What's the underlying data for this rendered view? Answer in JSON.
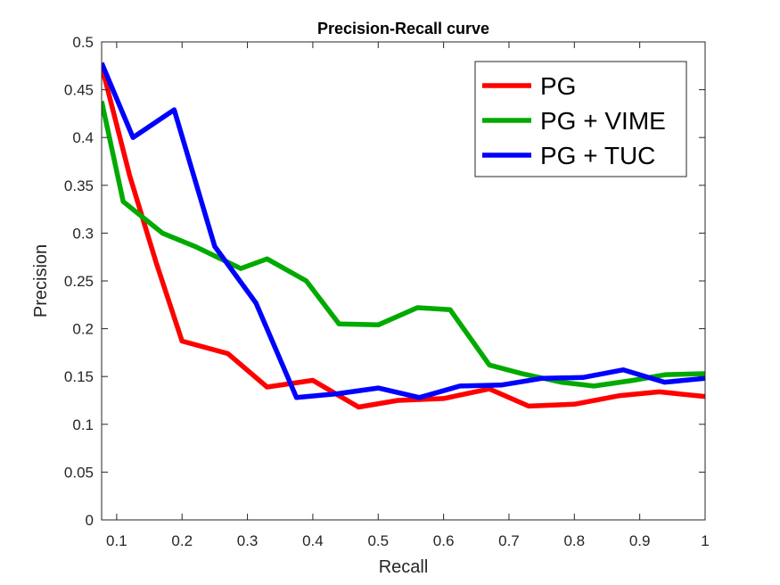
{
  "chart_data": {
    "type": "line",
    "title": "Precision-Recall curve",
    "xlabel": "Recall",
    "ylabel": "Precision",
    "xlim": [
      0.077,
      1.0
    ],
    "ylim": [
      0,
      0.5
    ],
    "xticks": [
      0.1,
      0.2,
      0.3,
      0.4,
      0.5,
      0.6,
      0.7,
      0.8,
      0.9,
      1
    ],
    "xtick_labels": [
      "0.1",
      "0.2",
      "0.3",
      "0.4",
      "0.5",
      "0.6",
      "0.7",
      "0.8",
      "0.9",
      "1"
    ],
    "yticks": [
      0,
      0.05,
      0.1,
      0.15,
      0.2,
      0.25,
      0.3,
      0.35,
      0.4,
      0.45,
      0.5
    ],
    "ytick_labels": [
      "0",
      "0.05",
      "0.1",
      "0.15",
      "0.2",
      "0.25",
      "0.3",
      "0.35",
      "0.4",
      "0.45",
      "0.5"
    ],
    "grid": false,
    "legend_position": "top-right",
    "series": [
      {
        "name": "PG",
        "color": "#ff0000",
        "x": [
          0.077,
          0.12,
          0.16,
          0.2,
          0.27,
          0.33,
          0.4,
          0.47,
          0.53,
          0.6,
          0.67,
          0.73,
          0.8,
          0.87,
          0.93,
          1.0
        ],
        "y": [
          0.475,
          0.36,
          0.27,
          0.187,
          0.174,
          0.139,
          0.146,
          0.118,
          0.125,
          0.127,
          0.137,
          0.119,
          0.121,
          0.13,
          0.134,
          0.129
        ]
      },
      {
        "name": "PG + VIME",
        "color": "#00aa00",
        "x": [
          0.077,
          0.11,
          0.17,
          0.22,
          0.29,
          0.33,
          0.39,
          0.44,
          0.5,
          0.56,
          0.61,
          0.67,
          0.72,
          0.78,
          0.83,
          0.89,
          0.94,
          1.0
        ],
        "y": [
          0.438,
          0.333,
          0.3,
          0.286,
          0.263,
          0.273,
          0.25,
          0.205,
          0.204,
          0.222,
          0.22,
          0.162,
          0.153,
          0.144,
          0.14,
          0.146,
          0.152,
          0.153
        ]
      },
      {
        "name": "PG + TUC",
        "color": "#0000ff",
        "x": [
          0.077,
          0.125,
          0.188,
          0.25,
          0.313,
          0.375,
          0.438,
          0.5,
          0.563,
          0.625,
          0.688,
          0.75,
          0.813,
          0.875,
          0.938,
          1.0
        ],
        "y": [
          0.478,
          0.4,
          0.429,
          0.286,
          0.227,
          0.128,
          0.132,
          0.138,
          0.128,
          0.14,
          0.141,
          0.148,
          0.149,
          0.157,
          0.144,
          0.148
        ]
      }
    ]
  }
}
